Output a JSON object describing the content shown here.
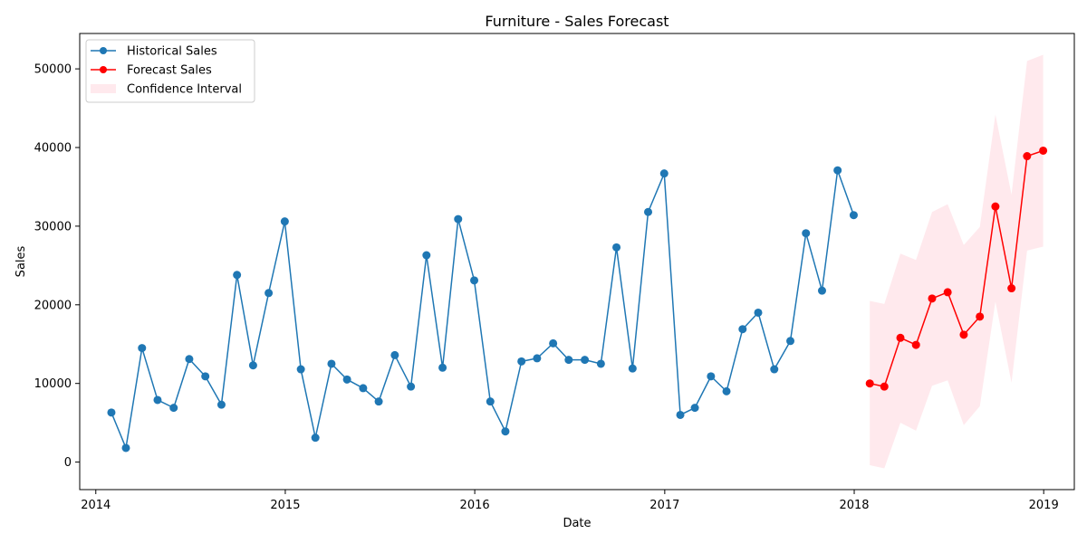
{
  "chart_data": {
    "type": "line",
    "title": "Furniture - Sales Forecast",
    "xlabel": "Date",
    "ylabel": "Sales",
    "xlim": [
      "2013-12-01",
      "2019-03-01"
    ],
    "ylim": [
      -3500,
      54500
    ],
    "x_ticks": [
      "2014-01-01",
      "2015-01-01",
      "2016-01-01",
      "2017-01-01",
      "2018-01-01",
      "2019-01-01"
    ],
    "x_tick_labels": [
      "2014",
      "2015",
      "2016",
      "2017",
      "2018",
      "2019"
    ],
    "y_ticks": [
      0,
      10000,
      20000,
      30000,
      40000,
      50000
    ],
    "y_tick_labels": [
      "0",
      "10000",
      "20000",
      "30000",
      "40000",
      "50000"
    ],
    "grid": false,
    "legend_position": "top-left",
    "series": [
      {
        "name": "Historical Sales",
        "color": "#1f77b4",
        "marker": "circle",
        "x": [
          "2014-01-31",
          "2014-02-28",
          "2014-03-31",
          "2014-04-30",
          "2014-05-31",
          "2014-06-30",
          "2014-07-31",
          "2014-08-31",
          "2014-09-30",
          "2014-10-31",
          "2014-11-30",
          "2014-12-31",
          "2015-01-31",
          "2015-02-28",
          "2015-03-31",
          "2015-04-30",
          "2015-05-31",
          "2015-06-30",
          "2015-07-31",
          "2015-08-31",
          "2015-09-30",
          "2015-10-31",
          "2015-11-30",
          "2015-12-31",
          "2016-01-31",
          "2016-02-29",
          "2016-03-31",
          "2016-04-30",
          "2016-05-31",
          "2016-06-30",
          "2016-07-31",
          "2016-08-31",
          "2016-09-30",
          "2016-10-31",
          "2016-11-30",
          "2016-12-31",
          "2017-01-31",
          "2017-02-28",
          "2017-03-31",
          "2017-04-30",
          "2017-05-31",
          "2017-06-30",
          "2017-07-31",
          "2017-08-31",
          "2017-09-30",
          "2017-10-31",
          "2017-11-30",
          "2017-12-31"
        ],
        "values": [
          6300,
          1800,
          14500,
          7900,
          6900,
          13100,
          10900,
          7300,
          23800,
          12300,
          21500,
          30600,
          11800,
          3100,
          12500,
          10500,
          9400,
          7700,
          13600,
          9600,
          26300,
          12000,
          30900,
          23100,
          7700,
          3900,
          12800,
          13200,
          15100,
          13000,
          13000,
          12500,
          27300,
          11900,
          31800,
          36700,
          6000,
          6900,
          10900,
          9000,
          16900,
          19000,
          11800,
          15400,
          29100,
          21800,
          37100,
          31400
        ]
      },
      {
        "name": "Forecast Sales",
        "color": "#ff0000",
        "marker": "circle",
        "x": [
          "2018-01-31",
          "2018-02-28",
          "2018-03-31",
          "2018-04-30",
          "2018-05-31",
          "2018-06-30",
          "2018-07-31",
          "2018-08-31",
          "2018-09-30",
          "2018-10-31",
          "2018-11-30",
          "2018-12-31"
        ],
        "values": [
          10000,
          9600,
          15800,
          14900,
          20800,
          21600,
          16200,
          18500,
          32500,
          22100,
          38900,
          39600
        ]
      }
    ],
    "confidence_interval": {
      "name": "Confidence Interval",
      "color": "#ffc0cb",
      "x": [
        "2018-01-31",
        "2018-02-28",
        "2018-03-31",
        "2018-04-30",
        "2018-05-31",
        "2018-06-30",
        "2018-07-31",
        "2018-08-31",
        "2018-09-30",
        "2018-10-31",
        "2018-11-30",
        "2018-12-31"
      ],
      "lower": [
        -400,
        -800,
        5000,
        4000,
        9700,
        10400,
        4700,
        7100,
        20400,
        10100,
        26900,
        27400
      ],
      "upper": [
        20500,
        20100,
        26500,
        25700,
        31800,
        32800,
        27600,
        29900,
        44200,
        34000,
        51000,
        51800
      ]
    }
  }
}
